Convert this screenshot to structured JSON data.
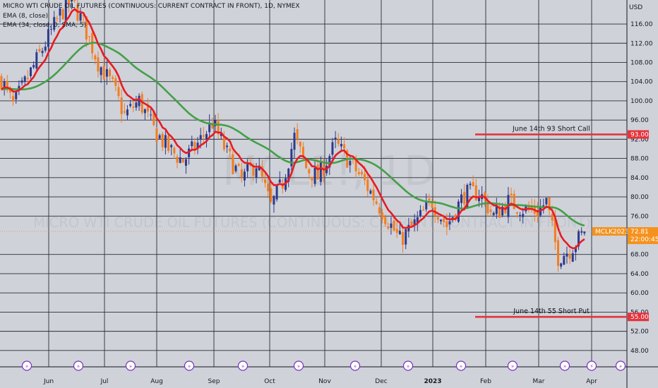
{
  "legend": {
    "title": "MICRO WTI CRUDE OIL FUTURES (CONTINUOUS: CURRENT CONTRACT IN FRONT), 1D, NYMEX",
    "ema_fast": "EMA (8, close)",
    "ema_slow": "EMA (34, close, 0, SMA, 5)"
  },
  "watermark": {
    "symbol": "MCL1!, 1D",
    "description": "MICRO WTI CRUDE OIL FUTURES (CONTINUOUS: CURRENT CONTRACT IN FRONT)"
  },
  "colors": {
    "background": "#cfd2d9",
    "grid": "#2a2e39",
    "up_candle": "#2e3a8c",
    "down_candle": "#f57c1f",
    "ema_fast": "#e81b23",
    "ema_slow": "#43a047",
    "hline": "#e5343d",
    "price_tag": "#f5921e",
    "event_badge": "#7b2fbe"
  },
  "chart_data": {
    "type": "candlestick",
    "symbol": "MCLK2023",
    "timeframe": "1D",
    "exchange": "NYMEX",
    "currency": "USD",
    "x_labels": [
      "Jun",
      "Jul",
      "Aug",
      "Sep",
      "Oct",
      "Nov",
      "Dec",
      "2023",
      "Feb",
      "Mar",
      "Apr"
    ],
    "y_ticks": [
      "116.00",
      "112.00",
      "108.00",
      "104.00",
      "100.00",
      "96.00",
      "92.00",
      "88.00",
      "84.00",
      "80.00",
      "76.00",
      "68.00",
      "64.00",
      "60.00",
      "56.00",
      "52.00",
      "48.00"
    ],
    "ylim": [
      44.6,
      121.0
    ],
    "grid": true,
    "anchors": [
      [
        0,
        104.5
      ],
      [
        4,
        99.0
      ],
      [
        10,
        106.0
      ],
      [
        15,
        112.0
      ],
      [
        20,
        118.0
      ],
      [
        24,
        121.0
      ],
      [
        28,
        116.0
      ],
      [
        33,
        108.0
      ],
      [
        38,
        103.0
      ],
      [
        42,
        97.0
      ],
      [
        47,
        100.0
      ],
      [
        52,
        94.0
      ],
      [
        57,
        90.0
      ],
      [
        62,
        87.5
      ],
      [
        67,
        91.0
      ],
      [
        72,
        95.5
      ],
      [
        77,
        89.0
      ],
      [
        82,
        83.5
      ],
      [
        87,
        87.0
      ],
      [
        92,
        78.0
      ],
      [
        96,
        83.0
      ],
      [
        100,
        92.5
      ],
      [
        104,
        86.0
      ],
      [
        108,
        84.0
      ],
      [
        114,
        91.0
      ],
      [
        118,
        88.0
      ],
      [
        124,
        83.0
      ],
      [
        130,
        77.0
      ],
      [
        136,
        71.0
      ],
      [
        142,
        75.0
      ],
      [
        147,
        79.0
      ],
      [
        152,
        74.0
      ],
      [
        158,
        80.5
      ],
      [
        163,
        81.0
      ],
      [
        168,
        76.0
      ],
      [
        173,
        79.0
      ],
      [
        178,
        77.5
      ],
      [
        183,
        77.0
      ],
      [
        186,
        79.0
      ],
      [
        190,
        67.5
      ],
      [
        194,
        69.0
      ],
      [
        199,
        72.8
      ]
    ],
    "ema_fast_label": "EMA (8, close)",
    "ema_slow_label": "EMA (34, close, 0, SMA, 5)",
    "last_price": "72.81",
    "countdown": "22:00:45",
    "horizontal_lines": [
      {
        "value": 93.0,
        "label": "June 14th 93 Short Call",
        "price_label": "93.00"
      },
      {
        "value": 55.0,
        "label": "June 14th 55 Short Put",
        "price_label": "55.00"
      }
    ]
  }
}
